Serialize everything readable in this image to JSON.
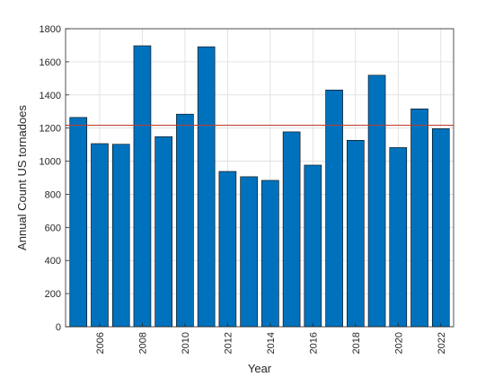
{
  "chart_data": {
    "type": "bar",
    "xlabel": "Year",
    "ylabel": "Annual Count US tornadoes",
    "categories": [
      "2005",
      "2006",
      "2007",
      "2008",
      "2009",
      "2010",
      "2011",
      "2012",
      "2013",
      "2014",
      "2015",
      "2016",
      "2017",
      "2018",
      "2019",
      "2020",
      "2021",
      "2022"
    ],
    "values": [
      1264,
      1106,
      1102,
      1697,
      1148,
      1284,
      1691,
      938,
      906,
      884,
      1177,
      976,
      1430,
      1126,
      1519,
      1082,
      1316,
      1196
    ],
    "xticks": [
      "2006",
      "2008",
      "2010",
      "2012",
      "2014",
      "2016",
      "2018",
      "2020",
      "2022"
    ],
    "xlim": [
      2004.4,
      2022.6
    ],
    "ylim": [
      0,
      1800
    ],
    "yticks": [
      0,
      200,
      400,
      600,
      800,
      1000,
      1200,
      1400,
      1600,
      1800
    ],
    "reference_line": {
      "value": 1217,
      "color": "#c0392b"
    },
    "bar_color": "#0072bd",
    "grid": true
  }
}
